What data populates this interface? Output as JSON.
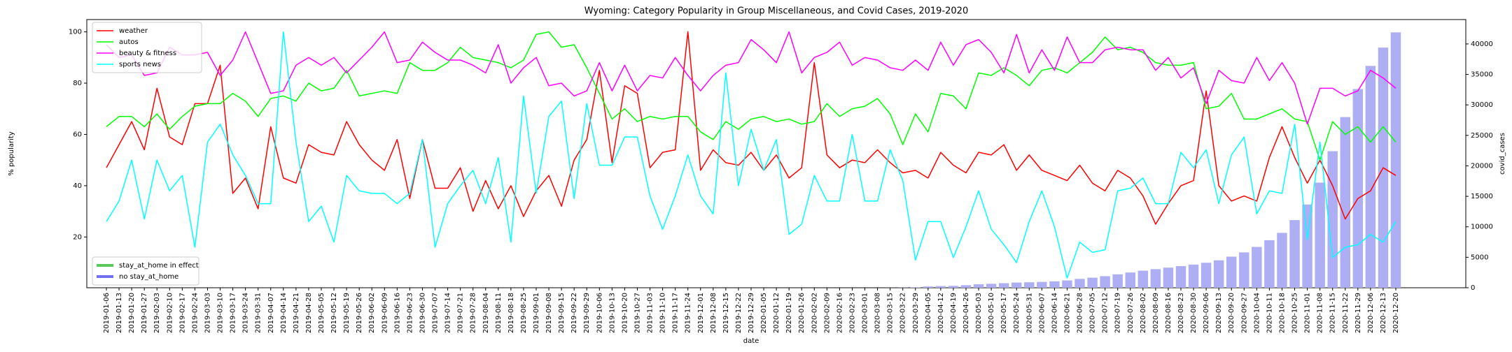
{
  "chart_data": {
    "type": "line",
    "title": "Wyoming: Category Popularity in Group Miscellaneous, and Covid Cases, 2019-2020",
    "xlabel": "date",
    "ylabel": "% popularity",
    "y2label": "covid_cases",
    "categories": [
      "2019-01-06",
      "2019-01-13",
      "2019-01-20",
      "2019-01-27",
      "2019-02-03",
      "2019-02-10",
      "2019-02-17",
      "2019-02-24",
      "2019-03-03",
      "2019-03-10",
      "2019-03-17",
      "2019-03-24",
      "2019-03-31",
      "2019-04-07",
      "2019-04-14",
      "2019-04-21",
      "2019-04-28",
      "2019-05-05",
      "2019-05-12",
      "2019-05-19",
      "2019-05-26",
      "2019-06-02",
      "2019-06-09",
      "2019-06-16",
      "2019-06-23",
      "2019-06-30",
      "2019-07-07",
      "2019-07-14",
      "2019-07-21",
      "2019-07-28",
      "2019-08-04",
      "2019-08-11",
      "2019-08-18",
      "2019-08-25",
      "2019-09-01",
      "2019-09-08",
      "2019-09-15",
      "2019-09-22",
      "2019-09-29",
      "2019-10-06",
      "2019-10-13",
      "2019-10-20",
      "2019-10-27",
      "2019-11-03",
      "2019-11-10",
      "2019-11-17",
      "2019-11-24",
      "2019-12-01",
      "2019-12-08",
      "2019-12-15",
      "2019-12-22",
      "2019-12-29",
      "2020-01-05",
      "2020-01-12",
      "2020-01-19",
      "2020-01-26",
      "2020-02-02",
      "2020-02-09",
      "2020-02-16",
      "2020-02-23",
      "2020-03-01",
      "2020-03-08",
      "2020-03-15",
      "2020-03-22",
      "2020-03-29",
      "2020-04-05",
      "2020-04-12",
      "2020-04-19",
      "2020-04-26",
      "2020-05-03",
      "2020-05-10",
      "2020-05-17",
      "2020-05-24",
      "2020-05-31",
      "2020-06-07",
      "2020-06-14",
      "2020-06-21",
      "2020-06-28",
      "2020-07-05",
      "2020-07-12",
      "2020-07-19",
      "2020-07-26",
      "2020-08-02",
      "2020-08-09",
      "2020-08-16",
      "2020-08-23",
      "2020-08-30",
      "2020-09-06",
      "2020-09-13",
      "2020-09-20",
      "2020-09-27",
      "2020-10-04",
      "2020-10-11",
      "2020-10-18",
      "2020-10-25",
      "2020-11-01",
      "2020-11-08",
      "2020-11-15",
      "2020-11-22",
      "2020-11-29",
      "2020-12-06",
      "2020-12-13",
      "2020-12-20"
    ],
    "series": [
      {
        "name": "weather",
        "color": "#ff0000",
        "values": [
          47,
          56,
          65,
          54,
          78,
          59,
          56,
          72,
          72,
          87,
          37,
          43,
          31,
          63,
          43,
          41,
          56,
          53,
          52,
          65,
          56,
          50,
          46,
          58,
          35,
          58,
          39,
          39,
          47,
          30,
          42,
          31,
          40,
          28,
          38,
          44,
          32,
          50,
          58,
          85,
          49,
          79,
          76,
          47,
          53,
          54,
          100,
          46,
          54,
          49,
          48,
          53,
          46,
          52,
          43,
          47,
          88,
          52,
          47,
          50,
          49,
          54,
          49,
          45,
          46,
          43,
          53,
          48,
          45,
          53,
          52,
          56,
          46,
          52,
          46,
          44,
          42,
          48,
          41,
          38,
          46,
          43,
          36,
          25,
          33,
          40,
          42,
          77,
          40,
          34,
          36,
          34,
          51,
          63,
          51,
          41,
          50,
          40,
          27,
          35,
          38,
          47,
          44
        ]
      },
      {
        "name": "autos",
        "color": "#00ff00",
        "values": [
          63,
          67,
          67,
          63,
          68,
          62,
          67,
          71,
          72,
          72,
          76,
          73,
          67,
          74,
          75,
          73,
          80,
          77,
          78,
          85,
          75,
          76,
          77,
          76,
          88,
          85,
          85,
          88,
          94,
          90,
          89,
          88,
          86,
          89,
          99,
          100,
          94,
          95,
          86,
          76,
          66,
          70,
          65,
          67,
          66,
          67,
          67,
          61,
          58,
          65,
          62,
          66,
          67,
          65,
          66,
          64,
          65,
          72,
          67,
          70,
          71,
          74,
          68,
          56,
          68,
          61,
          76,
          75,
          70,
          84,
          83,
          86,
          83,
          79,
          85,
          86,
          84,
          88,
          92,
          98,
          93,
          94,
          92,
          88,
          87,
          87,
          88,
          70,
          71,
          76,
          66,
          66,
          68,
          70,
          66,
          65,
          50,
          65,
          60,
          63,
          57,
          63,
          57
        ]
      },
      {
        "name": "beauty & fitness",
        "color": "#ff00ff",
        "values": [
          95,
          90,
          91,
          83,
          84,
          94,
          91,
          91,
          92,
          83,
          89,
          100,
          88,
          76,
          77,
          87,
          90,
          87,
          90,
          84,
          89,
          94,
          100,
          88,
          89,
          96,
          92,
          89,
          89,
          87,
          84,
          95,
          80,
          86,
          90,
          79,
          80,
          75,
          77,
          88,
          77,
          87,
          77,
          83,
          82,
          90,
          83,
          77,
          83,
          87,
          88,
          97,
          93,
          88,
          100,
          84,
          90,
          92,
          96,
          87,
          90,
          89,
          86,
          85,
          89,
          85,
          96,
          87,
          95,
          97,
          92,
          84,
          99,
          84,
          93,
          85,
          98,
          88,
          88,
          93,
          94,
          93,
          93,
          85,
          90,
          82,
          86,
          72,
          85,
          81,
          80,
          90,
          81,
          88,
          80,
          64,
          78,
          78,
          75,
          77,
          85,
          82,
          78
        ]
      },
      {
        "name": "sports news",
        "color": "#00ffff",
        "values": [
          26,
          34,
          50,
          27,
          50,
          38,
          44,
          16,
          57,
          64,
          52,
          44,
          33,
          33,
          100,
          57,
          26,
          32,
          18,
          44,
          38,
          37,
          37,
          33,
          37,
          58,
          16,
          33,
          40,
          46,
          33,
          51,
          18,
          75,
          37,
          67,
          73,
          35,
          72,
          48,
          48,
          59,
          59,
          36,
          23,
          36,
          52,
          36,
          29,
          84,
          40,
          62,
          46,
          58,
          21,
          25,
          44,
          34,
          34,
          60,
          34,
          34,
          54,
          42,
          11,
          26,
          26,
          12,
          24,
          38,
          23,
          17,
          10,
          26,
          38,
          24,
          4,
          18,
          14,
          15,
          38,
          39,
          43,
          33,
          33,
          53,
          47,
          54,
          33,
          52,
          59,
          29,
          38,
          37,
          64,
          19,
          57,
          12,
          16,
          17,
          21,
          18,
          26
        ]
      }
    ],
    "bars": {
      "axis": "y2",
      "color": "#aeaef5",
      "values": [
        null,
        null,
        null,
        null,
        null,
        null,
        null,
        null,
        null,
        null,
        null,
        null,
        null,
        null,
        null,
        null,
        null,
        null,
        null,
        null,
        null,
        null,
        null,
        null,
        null,
        null,
        null,
        null,
        null,
        null,
        null,
        null,
        null,
        null,
        null,
        null,
        null,
        null,
        null,
        null,
        null,
        null,
        null,
        null,
        null,
        null,
        null,
        null,
        null,
        null,
        null,
        null,
        null,
        null,
        null,
        null,
        null,
        null,
        null,
        null,
        null,
        null,
        11,
        26,
        86,
        210,
        275,
        313,
        420,
        580,
        650,
        750,
        850,
        900,
        960,
        1050,
        1200,
        1450,
        1650,
        1900,
        2200,
        2500,
        2800,
        3050,
        3300,
        3550,
        3800,
        4100,
        4500,
        5100,
        5800,
        6700,
        7800,
        9000,
        11100,
        13650,
        17250,
        22400,
        28000,
        32600,
        36400,
        39400,
        41900
      ]
    },
    "bar_legend": [
      {
        "name": "stay_at_home in effect",
        "color": "#5cc85c"
      },
      {
        "name": "no stay_at_home",
        "color": "#7070f0"
      }
    ],
    "legend_loc": "upper left",
    "bar_legend_loc": "lower left",
    "ylim": [
      0.2,
      104.8
    ],
    "yticks": [
      20,
      40,
      60,
      80,
      100
    ],
    "y2lim": [
      0,
      44000
    ],
    "y2ticks": [
      0,
      5000,
      10000,
      15000,
      20000,
      25000,
      30000,
      35000,
      40000
    ]
  }
}
